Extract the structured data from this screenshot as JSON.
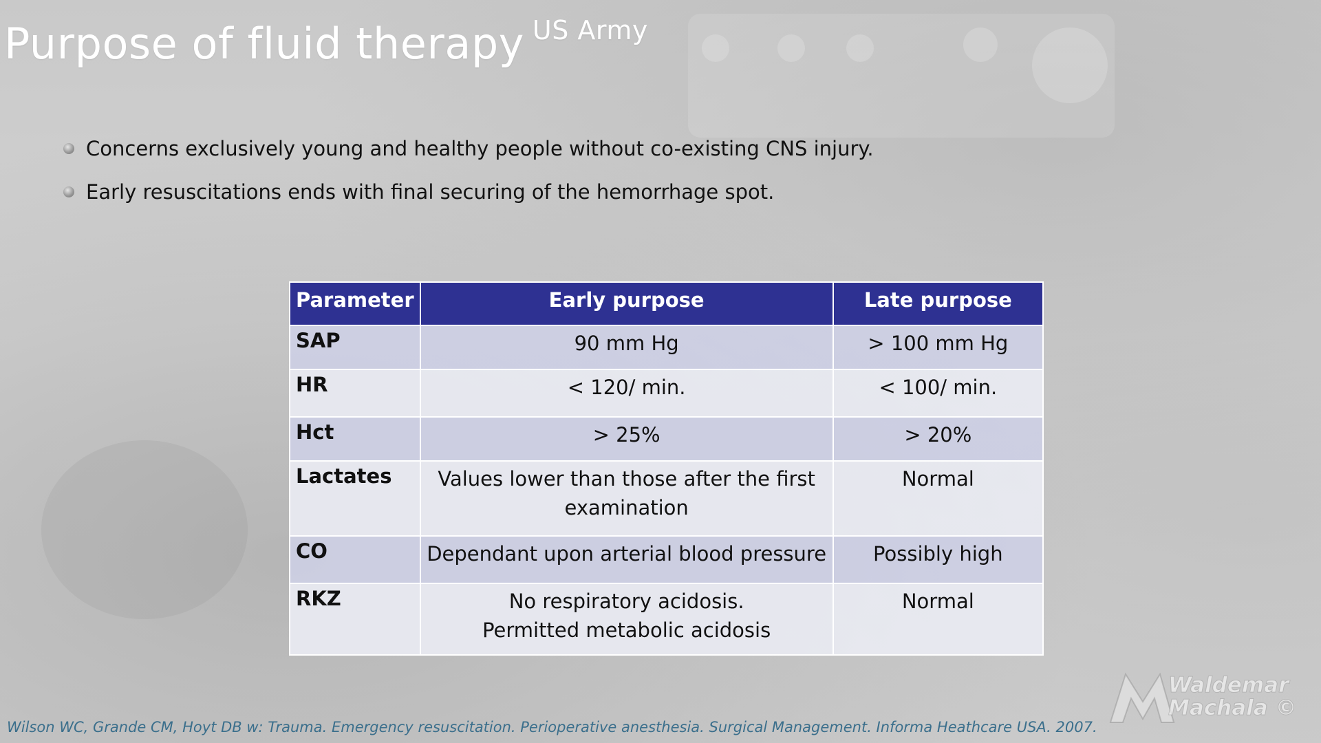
{
  "slide": {
    "title": "Purpose of fluid therapy",
    "title_superscript": "US Army"
  },
  "bullets": [
    "Concerns exclusively young and healthy people without co-existing CNS injury.",
    "Early resuscitations ends with final securing of the hemorrhage spot."
  ],
  "table": {
    "headers": [
      "Parameter",
      "Early purpose",
      "Late purpose"
    ],
    "rows": [
      {
        "param": "SAP",
        "early": "90 mm Hg",
        "late": "> 100 mm Hg"
      },
      {
        "param": "HR",
        "early": "< 120/ min.",
        "late": "< 100/ min."
      },
      {
        "param": "Hct",
        "early": "> 25%",
        "late": "> 20%"
      },
      {
        "param": "Lactates",
        "early": "Values lower than those after the first examination",
        "late": "Normal"
      },
      {
        "param": "CO",
        "early": "Dependant upon arterial blood pressure",
        "late": "Possibly high"
      },
      {
        "param": "RKZ",
        "early_line1": "No respiratory acidosis.",
        "early_line2": "Permitted metabolic acidosis",
        "late": "Normal"
      }
    ]
  },
  "citation": "Wilson WC, Grande CM, Hoyt DB w: Trauma. Emergency resuscitation. Perioperative anesthesia. Surgical Management. Informa Heathcare USA. 2007.",
  "watermark": {
    "line1": "Waldemar",
    "line2": "Machala ©"
  },
  "colors": {
    "header_bg": "#2e3192",
    "row_odd_bg": "#cdcfe4",
    "row_even_bg": "#e9eaf2",
    "citation": "#3b6f8c"
  }
}
